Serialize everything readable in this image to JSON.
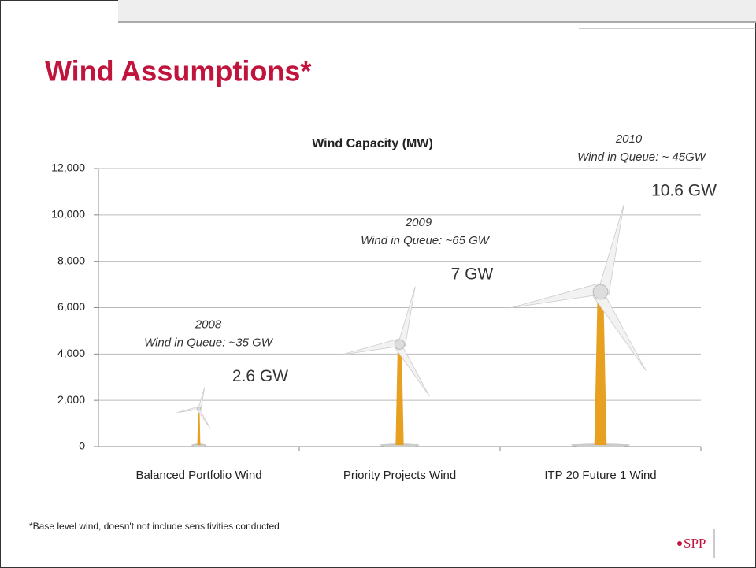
{
  "slide": {
    "title": "Wind Assumptions*",
    "footnote": "*Base level wind, doesn't not include sensitivities conducted",
    "logo": "SPP"
  },
  "chart_data": {
    "type": "pictograph",
    "title": "Wind Capacity (MW)",
    "categories": [
      "Balanced Portfolio Wind",
      "Priority Projects Wind",
      "ITP 20 Future 1 Wind"
    ],
    "values": [
      2600,
      7000,
      10600
    ],
    "value_labels": [
      "2.6 GW",
      "7 GW",
      "10.6 GW"
    ],
    "annotations": [
      {
        "year": "2008",
        "text": "Wind in Queue:  ~35 GW"
      },
      {
        "year": "2009",
        "text": "Wind in Queue:  ~65 GW"
      },
      {
        "year": "2010",
        "text": "Wind in Queue:  ~ 45GW"
      }
    ],
    "color": "#e8a020",
    "ylim": [
      0,
      12000
    ],
    "yticks": [
      0,
      {
        "value": 2000,
        "label": "2,000"
      },
      {
        "value": 4000,
        "label": "4,000"
      },
      {
        "value": 6000,
        "label": "6,000"
      },
      {
        "value": 8000,
        "label": "8,000"
      },
      {
        "value": 10000,
        "label": "10,000"
      },
      {
        "value": 12000,
        "label": "12,000"
      }
    ],
    "grid": true
  }
}
